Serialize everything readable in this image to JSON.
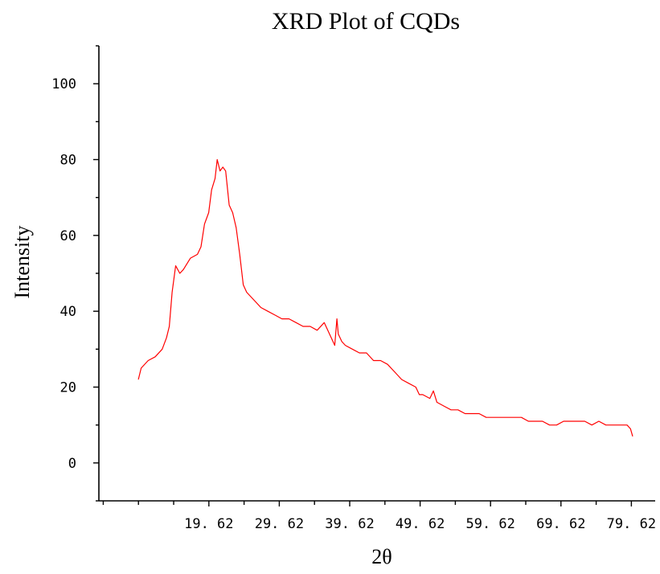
{
  "chart_data": {
    "type": "line",
    "title": "XRD Plot of CQDs",
    "xlabel": "2θ",
    "ylabel": "Intensity",
    "xlim": [
      4.0,
      83.0
    ],
    "ylim": [
      -10,
      110
    ],
    "x_ticks": [
      19.62,
      29.62,
      39.62,
      49.62,
      59.62,
      69.62,
      79.62
    ],
    "x_tick_labels": [
      "19. 62",
      "29. 62",
      "39. 62",
      "49. 62",
      "59. 62",
      "69. 62",
      "79. 62"
    ],
    "y_ticks": [
      0,
      20,
      40,
      60,
      80,
      100
    ],
    "y_tick_labels": [
      "0",
      "20",
      "40",
      "60",
      "80",
      "100"
    ],
    "grid": false,
    "colors": {
      "series": "#ff0000",
      "axis": "#000000"
    },
    "series": [
      {
        "x": [
          9.6,
          10.0,
          11.0,
          12.0,
          13.0,
          13.6,
          14.0,
          14.4,
          14.9,
          15.5,
          16.0,
          17.0,
          18.0,
          18.5,
          19.0,
          19.6,
          20.0,
          20.5,
          20.8,
          21.2,
          21.6,
          22.0,
          22.5,
          23.0,
          23.5,
          24.0,
          24.5,
          25.0,
          26.0,
          27.0,
          28.0,
          29.0,
          30.0,
          31.0,
          32.0,
          33.0,
          34.0,
          35.0,
          36.0,
          37.0,
          37.5,
          37.8,
          38.0,
          38.5,
          39.0,
          40.0,
          41.0,
          42.0,
          43.0,
          44.0,
          45.0,
          46.0,
          47.0,
          48.0,
          49.0,
          49.5,
          50.0,
          51.0,
          51.5,
          52.0,
          53.0,
          54.0,
          55.0,
          56.0,
          57.0,
          58.0,
          59.0,
          60.0,
          61.0,
          62.0,
          63.0,
          64.0,
          65.0,
          66.0,
          67.0,
          68.0,
          69.0,
          70.0,
          71.0,
          72.0,
          73.0,
          74.0,
          75.0,
          76.0,
          77.0,
          78.0,
          79.0,
          79.5,
          79.8
        ],
        "y": [
          22,
          25,
          27,
          28,
          30,
          33,
          36,
          45,
          52,
          50,
          51,
          54,
          55,
          57,
          63,
          66,
          72,
          75,
          80,
          77,
          78,
          77,
          68,
          66,
          62,
          55,
          47,
          45,
          43,
          41,
          40,
          39,
          38,
          38,
          37,
          36,
          36,
          35,
          37,
          33,
          31,
          38,
          34,
          32,
          31,
          30,
          29,
          29,
          27,
          27,
          26,
          24,
          22,
          21,
          20,
          18,
          18,
          17,
          19,
          16,
          15,
          14,
          14,
          13,
          13,
          13,
          12,
          12,
          12,
          12,
          12,
          12,
          11,
          11,
          11,
          10,
          10,
          11,
          11,
          11,
          11,
          10,
          11,
          10,
          10,
          10,
          10,
          9,
          7
        ]
      }
    ]
  }
}
